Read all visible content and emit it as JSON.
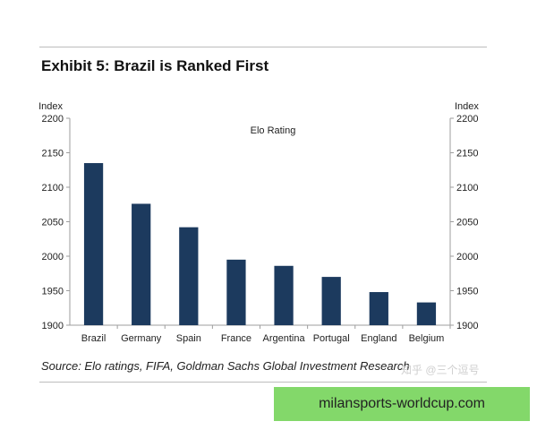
{
  "exhibit_title": "Exhibit 5: Brazil is Ranked First",
  "source_note": "Source:  Elo ratings, FIFA, Goldman Sachs Global Investment Research",
  "watermark_text": "知乎 @三个逗号",
  "banner_text": "milansports-worldcup.com",
  "colors": {
    "bar": "#1c3a5e",
    "axis": "#9e9e9e",
    "banner_bg": "#83d86a"
  },
  "chart_data": {
    "type": "bar",
    "title": "Elo Rating",
    "ylabel_left": "Index",
    "ylabel_right": "Index",
    "xlabel": "",
    "categories": [
      "Brazil",
      "Germany",
      "Spain",
      "France",
      "Argentina",
      "Portugal",
      "England",
      "Belgium"
    ],
    "values": [
      2135,
      2076,
      2042,
      1995,
      1986,
      1970,
      1948,
      1933
    ],
    "ylim": [
      1900,
      2200
    ],
    "yticks": [
      1900,
      1950,
      2000,
      2050,
      2100,
      2150,
      2200
    ],
    "grid": false,
    "legend": "none"
  }
}
